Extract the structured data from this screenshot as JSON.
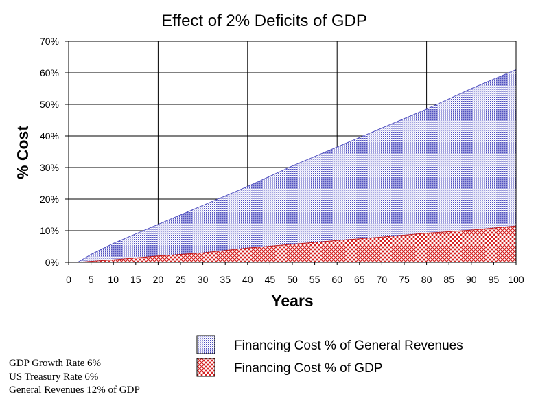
{
  "chart_data": {
    "type": "area",
    "title": "Effect of 2% Deficits of GDP",
    "xlabel": "Years",
    "ylabel": "% Cost",
    "xlim": [
      0,
      100
    ],
    "ylim": [
      0,
      70
    ],
    "x_ticks": [
      "0",
      "5",
      "10",
      "15",
      "20",
      "25",
      "30",
      "35",
      "40",
      "45",
      "50",
      "55",
      "60",
      "65",
      "70",
      "75",
      "80",
      "85",
      "90",
      "95",
      "100"
    ],
    "y_ticks": [
      "0%",
      "10%",
      "20%",
      "30%",
      "40%",
      "50%",
      "60%",
      "70%"
    ],
    "grid": "vertical every 20 years, horizontal every 10%",
    "legend_position": "bottom-right",
    "x": [
      0,
      2,
      5,
      10,
      20,
      30,
      40,
      50,
      60,
      70,
      80,
      90,
      100
    ],
    "series": [
      {
        "name": "Financing Cost % of General Revenues",
        "color": "#8c8cd2",
        "fill": "dotted-blue",
        "values": [
          0,
          0,
          2.5,
          6,
          12,
          18,
          24,
          30.5,
          36.5,
          42.5,
          48.5,
          55,
          61
        ]
      },
      {
        "name": "Financing Cost % of GDP",
        "color": "#d42020",
        "fill": "red-crosshatch",
        "values": [
          0,
          0,
          0.3,
          0.8,
          2,
          3,
          4.5,
          5.7,
          6.9,
          8,
          9.2,
          10.2,
          11.5
        ]
      }
    ],
    "notes": [
      "GDP Growth Rate 6%",
      "US Treasury Rate 6%",
      "General Revenues 12% of GDP"
    ]
  }
}
